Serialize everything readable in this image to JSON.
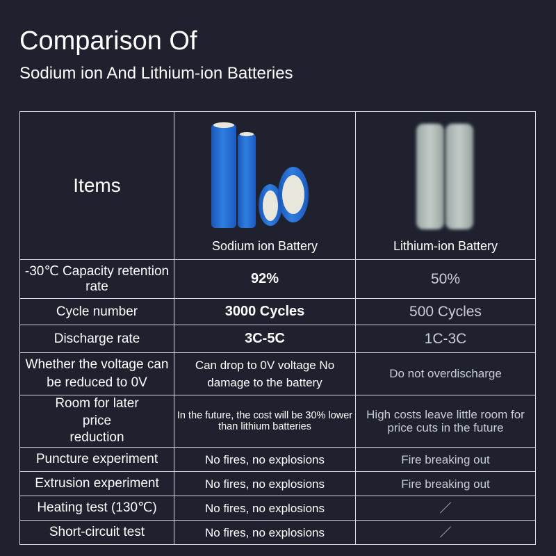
{
  "title": "Comparison Of",
  "subtitle": "Sodium ion And Lithium-ion Batteries",
  "table": {
    "header": {
      "items": "Items",
      "sodium": "Sodium ion Battery",
      "lithium": "Lithium-ion Battery"
    },
    "rows": [
      {
        "item": "-30℃ Capacity retention rate",
        "sodium": "92%",
        "lithium": "50%"
      },
      {
        "item": "Cycle number",
        "sodium": "3000 Cycles",
        "lithium": "500 Cycles"
      },
      {
        "item": "Discharge rate",
        "sodium": "3C-5C",
        "lithium": "1C-3C"
      },
      {
        "item": "Whether the voltage can be reduced to 0V",
        "sodium": "Can drop to 0V voltage No damage to the battery",
        "lithium": "Do not overdischarge"
      },
      {
        "item": "Room for later price reduction",
        "sodium": "In the future, the cost will be 30% lower than lithium batteries",
        "lithium": "High costs leave little room for price cuts in the future"
      },
      {
        "item": "Puncture experiment",
        "sodium": "No fires, no explosions",
        "lithium": "Fire breaking out"
      },
      {
        "item": "Extrusion experiment",
        "sodium": "No fires, no explosions",
        "lithium": "Fire breaking out"
      },
      {
        "item": "Heating test (130℃)",
        "sodium": "No fires, no explosions",
        "lithium": "／"
      },
      {
        "item": "Short-circuit test",
        "sodium": "No fires, no explosions",
        "lithium": "／"
      }
    ]
  }
}
